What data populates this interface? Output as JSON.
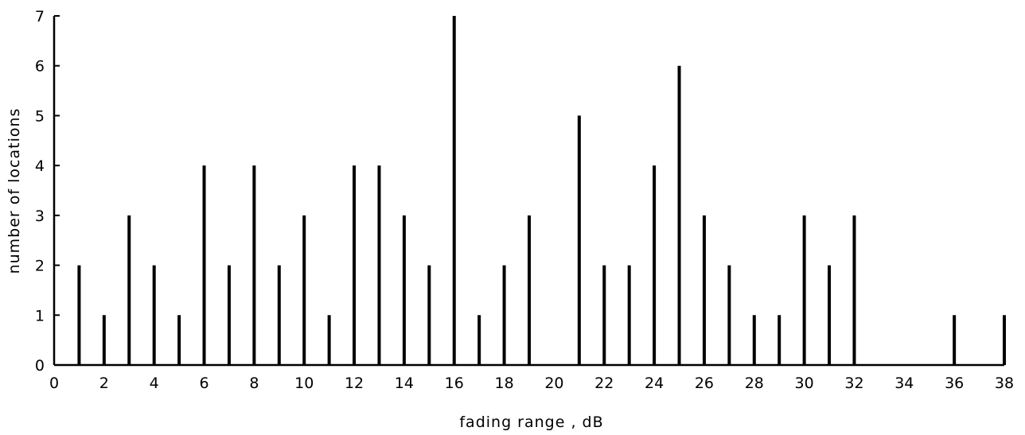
{
  "chart_data": {
    "type": "bar",
    "title": "",
    "xlabel": "fading range , dB",
    "ylabel": "number of locations",
    "xlim": [
      0,
      38
    ],
    "ylim": [
      0,
      7
    ],
    "x_ticks": [
      0,
      2,
      4,
      6,
      8,
      10,
      12,
      14,
      16,
      18,
      20,
      22,
      24,
      26,
      28,
      30,
      32,
      34,
      36,
      38
    ],
    "y_ticks": [
      0,
      1,
      2,
      3,
      4,
      5,
      6,
      7
    ],
    "grid": false,
    "legend": "none",
    "bar_color": "#000000",
    "x": [
      1,
      2,
      3,
      4,
      5,
      6,
      7,
      8,
      9,
      10,
      11,
      12,
      13,
      14,
      15,
      16,
      17,
      18,
      19,
      21,
      22,
      23,
      24,
      25,
      26,
      27,
      28,
      29,
      30,
      31,
      32,
      36,
      38
    ],
    "values": [
      2,
      1,
      3,
      2,
      1,
      4,
      2,
      4,
      2,
      3,
      1,
      4,
      4,
      3,
      2,
      7,
      1,
      2,
      3,
      5,
      2,
      2,
      4,
      6,
      3,
      2,
      1,
      1,
      3,
      2,
      3,
      1,
      1
    ]
  }
}
